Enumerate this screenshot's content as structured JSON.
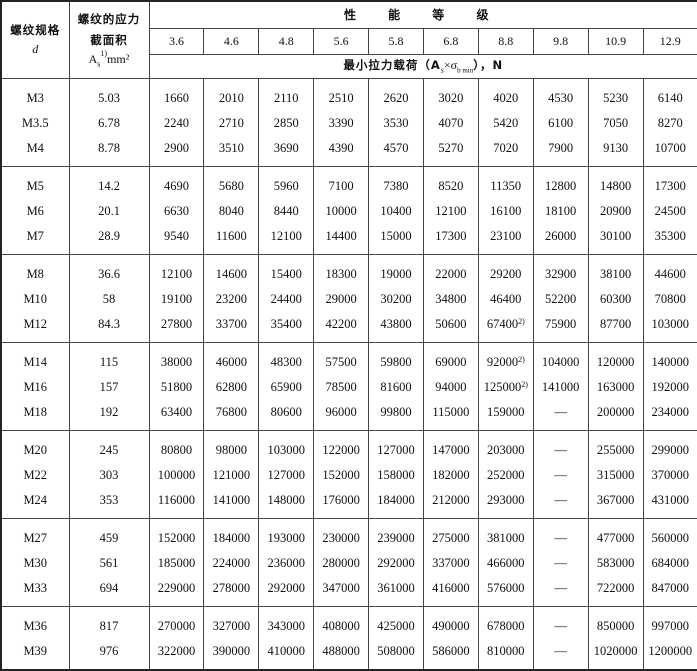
{
  "header": {
    "col_spec": "螺纹规格",
    "col_spec_symbol": "d",
    "col_area_line1": "螺纹的应力",
    "col_area_line2": "截面积",
    "col_area_line3": "A",
    "col_area_sub": "s",
    "col_area_sup": "1)",
    "col_area_unit": "mm²",
    "grade_title": "性 能 等 级",
    "grades": [
      "3.6",
      "4.6",
      "4.8",
      "5.6",
      "5.8",
      "6.8",
      "8.8",
      "9.8",
      "10.9",
      "12.9"
    ],
    "load_label": "最小拉力载荷（A",
    "load_label_sub": "s",
    "load_label_mid": "×σ",
    "load_label_sub2": "b min",
    "load_label_end": "），N"
  },
  "groups": [
    [
      {
        "d": "M3",
        "area": "5.03",
        "values": [
          "1660",
          "2010",
          "2110",
          "2510",
          "2620",
          "3020",
          "4020",
          "4530",
          "5230",
          "6140"
        ]
      },
      {
        "d": "M3.5",
        "area": "6.78",
        "values": [
          "2240",
          "2710",
          "2850",
          "3390",
          "3530",
          "4070",
          "5420",
          "6100",
          "7050",
          "8270"
        ]
      },
      {
        "d": "M4",
        "area": "8.78",
        "values": [
          "2900",
          "3510",
          "3690",
          "4390",
          "4570",
          "5270",
          "7020",
          "7900",
          "9130",
          "10700"
        ]
      }
    ],
    [
      {
        "d": "M5",
        "area": "14.2",
        "values": [
          "4690",
          "5680",
          "5960",
          "7100",
          "7380",
          "8520",
          "11350",
          "12800",
          "14800",
          "17300"
        ]
      },
      {
        "d": "M6",
        "area": "20.1",
        "values": [
          "6630",
          "8040",
          "8440",
          "10000",
          "10400",
          "12100",
          "16100",
          "18100",
          "20900",
          "24500"
        ]
      },
      {
        "d": "M7",
        "area": "28.9",
        "values": [
          "9540",
          "11600",
          "12100",
          "14400",
          "15000",
          "17300",
          "23100",
          "26000",
          "30100",
          "35300"
        ]
      }
    ],
    [
      {
        "d": "M8",
        "area": "36.6",
        "values": [
          "12100",
          "14600",
          "15400",
          "18300",
          "19000",
          "22000",
          "29200",
          "32900",
          "38100",
          "44600"
        ]
      },
      {
        "d": "M10",
        "area": "58",
        "values": [
          "19100",
          "23200",
          "24400",
          "29000",
          "30200",
          "34800",
          "46400",
          "52200",
          "60300",
          "70800"
        ]
      },
      {
        "d": "M12",
        "area": "84.3",
        "values": [
          "27800",
          "33700",
          "35400",
          "42200",
          "43800",
          "50600",
          {
            "v": "67400",
            "sup": "2)"
          },
          "75900",
          "87700",
          "103000"
        ]
      }
    ],
    [
      {
        "d": "M14",
        "area": "115",
        "values": [
          "38000",
          "46000",
          "48300",
          "57500",
          "59800",
          "69000",
          {
            "v": "92000",
            "sup": "2)"
          },
          "104000",
          "120000",
          "140000"
        ]
      },
      {
        "d": "M16",
        "area": "157",
        "values": [
          "51800",
          "62800",
          "65900",
          "78500",
          "81600",
          "94000",
          {
            "v": "125000",
            "sup": "2)"
          },
          "141000",
          "163000",
          "192000"
        ]
      },
      {
        "d": "M18",
        "area": "192",
        "values": [
          "63400",
          "76800",
          "80600",
          "96000",
          "99800",
          "115000",
          "159000",
          "—",
          "200000",
          "234000"
        ]
      }
    ],
    [
      {
        "d": "M20",
        "area": "245",
        "values": [
          "80800",
          "98000",
          "103000",
          "122000",
          "127000",
          "147000",
          "203000",
          "—",
          "255000",
          "299000"
        ]
      },
      {
        "d": "M22",
        "area": "303",
        "values": [
          "100000",
          "121000",
          "127000",
          "152000",
          "158000",
          "182000",
          "252000",
          "—",
          "315000",
          "370000"
        ]
      },
      {
        "d": "M24",
        "area": "353",
        "values": [
          "116000",
          "141000",
          "148000",
          "176000",
          "184000",
          "212000",
          "293000",
          "—",
          "367000",
          "431000"
        ]
      }
    ],
    [
      {
        "d": "M27",
        "area": "459",
        "values": [
          "152000",
          "184000",
          "193000",
          "230000",
          "239000",
          "275000",
          "381000",
          "—",
          "477000",
          "560000"
        ]
      },
      {
        "d": "M30",
        "area": "561",
        "values": [
          "185000",
          "224000",
          "236000",
          "280000",
          "292000",
          "337000",
          "466000",
          "—",
          "583000",
          "684000"
        ]
      },
      {
        "d": "M33",
        "area": "694",
        "values": [
          "229000",
          "278000",
          "292000",
          "347000",
          "361000",
          "416000",
          "576000",
          "—",
          "722000",
          "847000"
        ]
      }
    ],
    [
      {
        "d": "M36",
        "area": "817",
        "values": [
          "270000",
          "327000",
          "343000",
          "408000",
          "425000",
          "490000",
          "678000",
          "—",
          "850000",
          "997000"
        ]
      },
      {
        "d": "M39",
        "area": "976",
        "values": [
          "322000",
          "390000",
          "410000",
          "488000",
          "508000",
          "586000",
          "810000",
          "—",
          "1020000",
          "1200000"
        ]
      }
    ]
  ]
}
